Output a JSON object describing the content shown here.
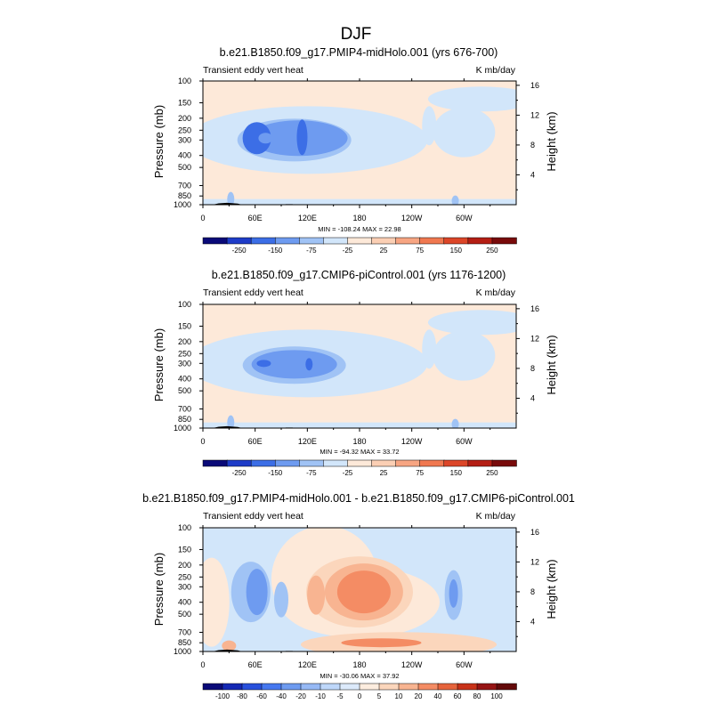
{
  "figure_title": "DJF",
  "chart_data": [
    {
      "type": "heatmap",
      "title": "b.e21.B1850.f09_g17.PMIP4-midHolo.001 (yrs 676-700)",
      "left_string": "Transient eddy vert heat",
      "right_string": "K mb/day",
      "ylabel": "Pressure (mb)",
      "ylabel_right": "Height (km)",
      "xticks": [
        "0",
        "60E",
        "120E",
        "180",
        "120W",
        "60W"
      ],
      "yticks": [
        "100",
        "150",
        "200",
        "250",
        "300",
        "400",
        "500",
        "700",
        "850",
        "1000"
      ],
      "height_ticks": [
        "16",
        "12",
        "8",
        "4"
      ],
      "min_max": "MIN = -108.24  MAX =  22.98",
      "colorbar_labels": [
        "-250",
        "-150",
        "-75",
        "-25",
        "25",
        "75",
        "150",
        "250"
      ],
      "xlim": [
        0,
        360
      ],
      "ylim": [
        1000,
        100
      ]
    },
    {
      "type": "heatmap",
      "title": "b.e21.B1850.f09_g17.CMIP6-piControl.001 (yrs 1176-1200)",
      "left_string": "Transient eddy vert heat",
      "right_string": "K mb/day",
      "ylabel": "Pressure (mb)",
      "ylabel_right": "Height (km)",
      "xticks": [
        "0",
        "60E",
        "120E",
        "180",
        "120W",
        "60W"
      ],
      "yticks": [
        "100",
        "150",
        "200",
        "250",
        "300",
        "400",
        "500",
        "700",
        "850",
        "1000"
      ],
      "height_ticks": [
        "16",
        "12",
        "8",
        "4"
      ],
      "min_max": "MIN = -94.32  MAX =  33.72",
      "colorbar_labels": [
        "-250",
        "-150",
        "-75",
        "-25",
        "25",
        "75",
        "150",
        "250"
      ],
      "xlim": [
        0,
        360
      ],
      "ylim": [
        1000,
        100
      ]
    },
    {
      "type": "heatmap",
      "title": "b.e21.B1850.f09_g17.PMIP4-midHolo.001 - b.e21.B1850.f09_g17.CMIP6-piControl.001",
      "left_string": "Transient eddy vert heat",
      "right_string": "K mb/day",
      "ylabel": "Pressure (mb)",
      "ylabel_right": "Height (km)",
      "xticks": [
        "0",
        "60E",
        "120E",
        "180",
        "120W",
        "60W"
      ],
      "yticks": [
        "100",
        "150",
        "200",
        "250",
        "300",
        "400",
        "500",
        "700",
        "850",
        "1000"
      ],
      "height_ticks": [
        "16",
        "12",
        "8",
        "4"
      ],
      "min_max": "MIN = -30.06  MAX =  37.92",
      "colorbar_labels": [
        "-100",
        "-80",
        "-60",
        "-40",
        "-20",
        "-10",
        "-5",
        "0",
        "5",
        "10",
        "20",
        "40",
        "60",
        "80",
        "100"
      ],
      "xlim": [
        0,
        360
      ],
      "ylim": [
        1000,
        100
      ]
    }
  ],
  "colorbars": {
    "main": [
      "#0a0a78",
      "#1e3cc8",
      "#3c6ee6",
      "#6e9bf0",
      "#a0c3f5",
      "#d2e6fa",
      "#fde9d9",
      "#fbcfb4",
      "#f7a582",
      "#f07850",
      "#dc4628",
      "#b41e14",
      "#780a0a"
    ],
    "diff": [
      "#0a0a78",
      "#1428b4",
      "#2850dc",
      "#4678f0",
      "#6e9bf0",
      "#96b9f5",
      "#bed7fa",
      "#dceafb",
      "#fdeddf",
      "#fbd6bc",
      "#f8b491",
      "#f48c64",
      "#e6643c",
      "#c83219",
      "#961414",
      "#640a0a"
    ]
  },
  "field_colors": {
    "background_pos": "#fde9d9",
    "neg_weak": "#d2e6fa",
    "neg_mod": "#a0c3f5",
    "neg_strong": "#6e9bf0",
    "neg_core": "#3c6ee6",
    "pos_weak": "#fbd6bc",
    "pos_mod": "#f8b491",
    "pos_strong": "#f48c64",
    "topography": "#000000"
  }
}
